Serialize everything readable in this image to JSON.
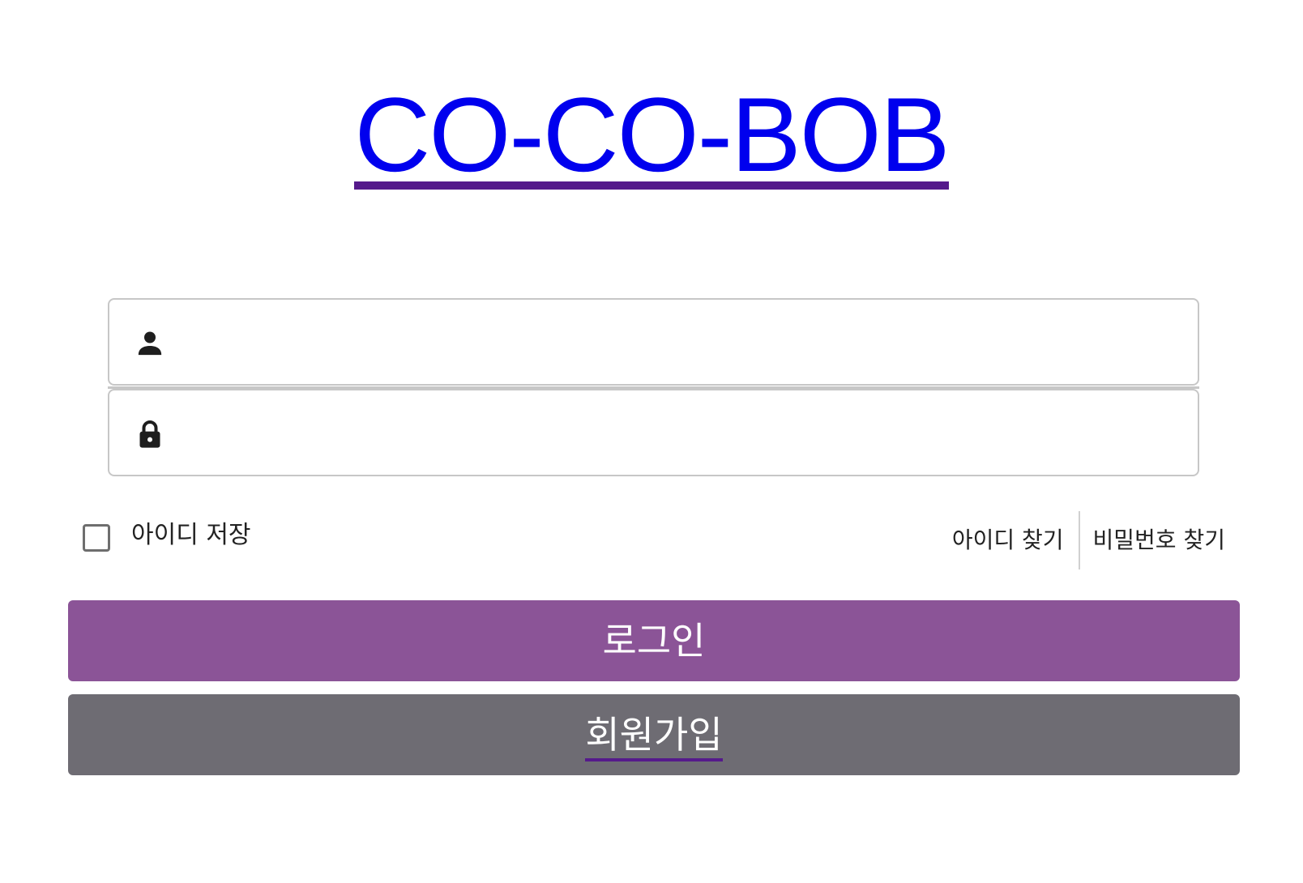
{
  "header": {
    "logo_text": "CO-CO-BOB"
  },
  "form": {
    "id_field": {
      "icon": "user-icon",
      "value": "",
      "placeholder": ""
    },
    "password_field": {
      "icon": "lock-icon",
      "value": "",
      "placeholder": ""
    },
    "remember_id_label": "아이디 저장",
    "find_id_label": "아이디 찾기",
    "find_password_label": "비밀번호 찾기",
    "login_label": "로그인",
    "signup_label": "회원가입"
  },
  "colors": {
    "logo": "#0000ee",
    "logo_underline": "#551a8b",
    "login_button": "#8b5497",
    "signup_button": "#6e6c73",
    "input_border": "#c7c7c7"
  }
}
